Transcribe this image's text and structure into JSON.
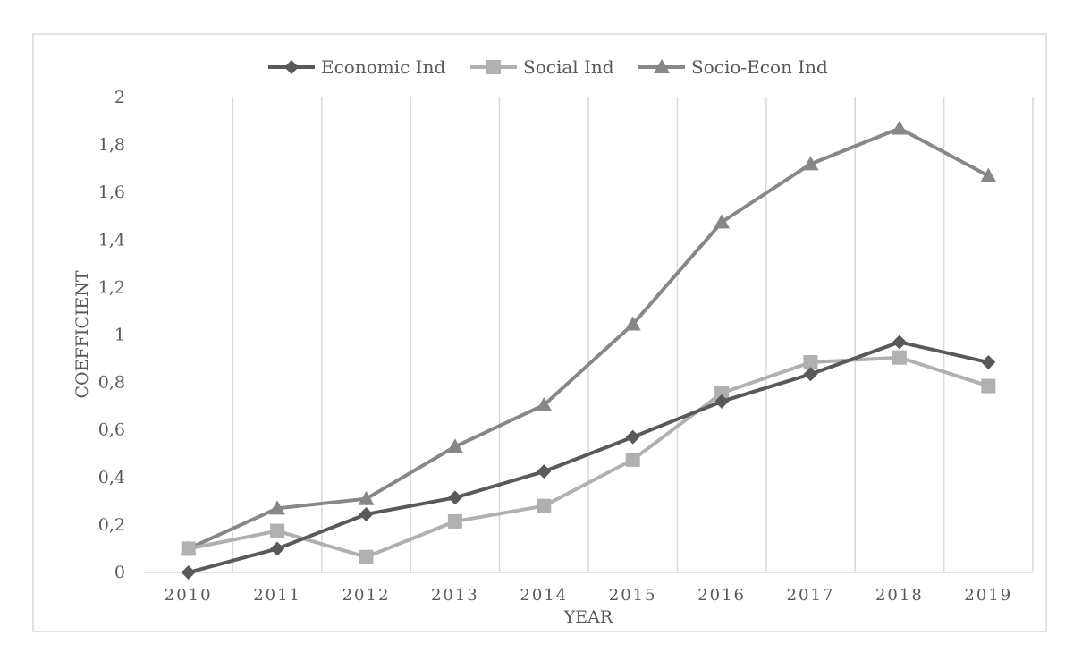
{
  "chart_data": {
    "type": "line",
    "title": "",
    "xlabel": "YEAR",
    "ylabel": "COEFFICIENT",
    "categories": [
      "2010",
      "2011",
      "2012",
      "2013",
      "2014",
      "2015",
      "2016",
      "2017",
      "2018",
      "2019"
    ],
    "ylim": [
      0,
      2
    ],
    "yticks": [
      0,
      0.2,
      0.4,
      0.6,
      0.8,
      1,
      1.2,
      1.4,
      1.6,
      1.8,
      2
    ],
    "ytick_labels": [
      "0",
      "0,2",
      "0,4",
      "0,6",
      "0,8",
      "1",
      "1,2",
      "1,4",
      "1,6",
      "1,8",
      "2"
    ],
    "grid": "vertical",
    "legend_position": "top",
    "series": [
      {
        "name": "Economic Ind",
        "marker": "diamond",
        "color": "#595959",
        "values": [
          0.0,
          0.1,
          0.245,
          0.315,
          0.425,
          0.57,
          0.72,
          0.835,
          0.97,
          0.885
        ]
      },
      {
        "name": "Social Ind",
        "marker": "square",
        "color": "#b0b0b0",
        "values": [
          0.1,
          0.175,
          0.065,
          0.215,
          0.28,
          0.475,
          0.755,
          0.885,
          0.905,
          0.785
        ]
      },
      {
        "name": "Socio-Econ Ind",
        "marker": "triangle",
        "color": "#878787",
        "values": [
          0.1,
          0.27,
          0.31,
          0.53,
          0.705,
          1.045,
          1.475,
          1.72,
          1.87,
          1.67
        ]
      }
    ]
  }
}
